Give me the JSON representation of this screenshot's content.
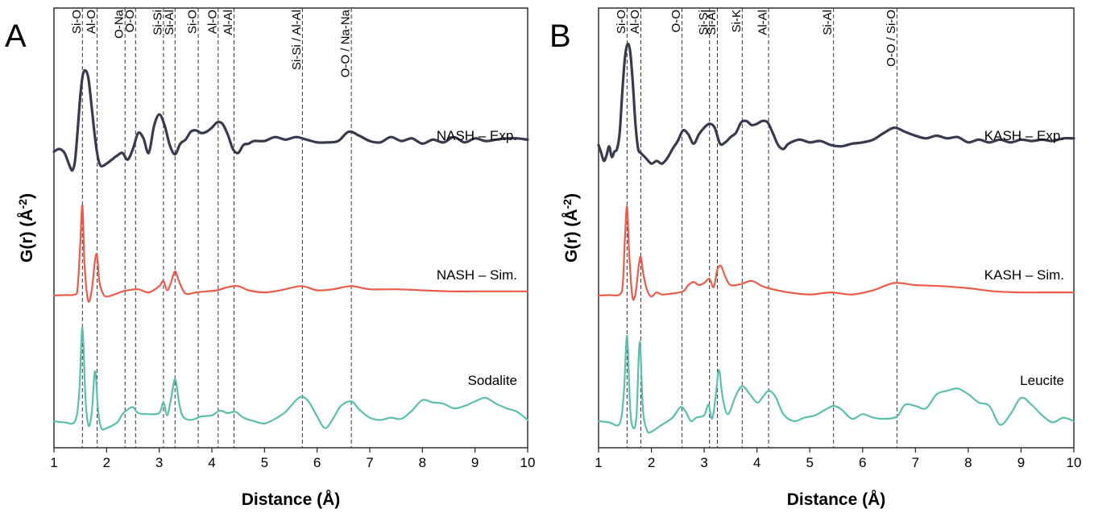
{
  "chart_data": [
    {
      "type": "line",
      "panel": "A",
      "xlabel": "Distance (Å)",
      "ylabel": "G(r) (Å",
      "ylabel_sup": "-2",
      "ylabel_close": ")",
      "xlim": [
        1,
        10
      ],
      "xticks": [
        1,
        2,
        3,
        4,
        5,
        6,
        7,
        8,
        9,
        10
      ],
      "reference_lines": [
        {
          "x": 1.54,
          "label": "Si-O"
        },
        {
          "x": 1.82,
          "label": "Al-O"
        },
        {
          "x": 2.35,
          "label": "O-Na"
        },
        {
          "x": 2.55,
          "label": "O-O"
        },
        {
          "x": 3.08,
          "label": "Si-Si"
        },
        {
          "x": 3.3,
          "label": "Si-Al"
        },
        {
          "x": 3.74,
          "label": "Si-O"
        },
        {
          "x": 4.12,
          "label": "Al-O"
        },
        {
          "x": 4.42,
          "label": "Al-Al"
        },
        {
          "x": 5.72,
          "label": "Si-Si / Al-Al"
        },
        {
          "x": 6.65,
          "label": "O-O / Na-Na"
        }
      ],
      "series": [
        {
          "name": "NASH – Exp.",
          "color": "#363b4e",
          "x": [
            1.0,
            1.1,
            1.2,
            1.3,
            1.35,
            1.4,
            1.45,
            1.5,
            1.55,
            1.6,
            1.65,
            1.7,
            1.75,
            1.8,
            1.85,
            1.9,
            2.0,
            2.1,
            2.2,
            2.3,
            2.4,
            2.5,
            2.6,
            2.7,
            2.8,
            2.9,
            3.0,
            3.1,
            3.2,
            3.3,
            3.4,
            3.5,
            3.6,
            3.7,
            3.8,
            3.9,
            4.0,
            4.1,
            4.2,
            4.3,
            4.4,
            4.5,
            4.6,
            4.7,
            4.8,
            5.0,
            5.2,
            5.4,
            5.6,
            5.8,
            6.0,
            6.2,
            6.4,
            6.6,
            6.8,
            7.0,
            7.2,
            7.4,
            7.6,
            7.8,
            8.0,
            8.2,
            8.4,
            8.6,
            8.8,
            9.0,
            9.2,
            9.4,
            9.6,
            9.8,
            10.0
          ],
          "y": [
            -0.2,
            0.0,
            -0.3,
            -1.3,
            -1.6,
            -0.9,
            1.4,
            4.0,
            5.6,
            5.9,
            5.4,
            3.8,
            1.9,
            0.2,
            -0.9,
            -1.3,
            -1.1,
            -0.8,
            -0.5,
            -0.3,
            -0.8,
            0.0,
            1.2,
            0.8,
            -0.3,
            1.7,
            2.6,
            1.8,
            0.3,
            -0.4,
            0.4,
            0.7,
            1.3,
            1.4,
            1.2,
            1.3,
            1.6,
            2.0,
            1.9,
            1.1,
            0.0,
            -0.3,
            0.3,
            0.4,
            0.6,
            0.6,
            0.9,
            0.7,
            0.9,
            0.7,
            0.5,
            0.5,
            0.6,
            1.3,
            1.0,
            0.6,
            0.5,
            0.9,
            0.6,
            0.8,
            0.4,
            0.7,
            0.5,
            0.9,
            0.5,
            0.8,
            0.6,
            0.7,
            0.8,
            0.8,
            0.7
          ]
        },
        {
          "name": "NASH – Sim.",
          "color": "#ea5b4a",
          "x": [
            1.0,
            1.2,
            1.4,
            1.45,
            1.5,
            1.54,
            1.58,
            1.65,
            1.72,
            1.78,
            1.82,
            1.86,
            1.92,
            2.0,
            2.2,
            2.3,
            2.4,
            2.6,
            2.8,
            3.0,
            3.08,
            3.15,
            3.22,
            3.3,
            3.38,
            3.5,
            3.7,
            3.9,
            4.1,
            4.3,
            4.5,
            4.7,
            5.0,
            5.3,
            5.7,
            6.0,
            6.3,
            6.65,
            7.0,
            7.5,
            8.0,
            8.5,
            9.0,
            9.5,
            10.0
          ],
          "y": [
            0.0,
            0.05,
            0.1,
            0.8,
            5.0,
            8.6,
            3.0,
            -0.5,
            0.6,
            3.4,
            3.8,
            1.4,
            0.3,
            -0.1,
            0.2,
            0.4,
            0.5,
            0.6,
            0.3,
            0.9,
            1.4,
            0.5,
            1.2,
            2.3,
            1.3,
            0.2,
            0.3,
            0.4,
            0.5,
            0.8,
            0.9,
            0.5,
            0.3,
            0.5,
            0.9,
            0.5,
            0.6,
            0.9,
            0.6,
            0.6,
            0.5,
            0.4,
            0.4,
            0.4,
            0.4
          ]
        },
        {
          "name": "Sodalite",
          "color": "#5cbfac",
          "x": [
            1.0,
            1.2,
            1.4,
            1.48,
            1.54,
            1.6,
            1.66,
            1.72,
            1.78,
            1.84,
            1.9,
            2.0,
            2.2,
            2.3,
            2.4,
            2.5,
            2.6,
            2.8,
            3.0,
            3.08,
            3.15,
            3.22,
            3.3,
            3.38,
            3.45,
            3.6,
            3.8,
            4.0,
            4.15,
            4.3,
            4.45,
            4.6,
            4.8,
            5.0,
            5.2,
            5.4,
            5.6,
            5.72,
            5.85,
            6.0,
            6.15,
            6.3,
            6.45,
            6.65,
            6.8,
            7.0,
            7.2,
            7.4,
            7.6,
            7.8,
            8.0,
            8.2,
            8.4,
            8.6,
            8.8,
            9.0,
            9.2,
            9.4,
            9.6,
            9.8,
            10.0
          ],
          "y": [
            0.0,
            -0.1,
            0.0,
            2.5,
            8.0,
            1.8,
            -0.4,
            0.8,
            4.3,
            0.8,
            -0.6,
            -0.6,
            -0.1,
            0.6,
            1.0,
            1.2,
            0.7,
            0.6,
            0.7,
            1.6,
            0.5,
            1.8,
            3.6,
            1.5,
            0.4,
            0.1,
            0.4,
            0.5,
            0.9,
            0.7,
            0.8,
            0.3,
            0.0,
            -0.2,
            0.2,
            0.8,
            1.8,
            2.1,
            1.6,
            0.4,
            -0.6,
            0.2,
            1.3,
            1.7,
            1.0,
            0.3,
            0.1,
            0.3,
            0.2,
            0.9,
            1.8,
            1.6,
            1.5,
            1.1,
            1.3,
            1.7,
            2.0,
            1.5,
            1.1,
            0.8,
            0.1
          ]
        }
      ],
      "series_labels": [
        "NASH – Exp.",
        "NASH – Sim.",
        "Sodalite"
      ]
    },
    {
      "type": "line",
      "panel": "B",
      "xlabel": "Distance (Å)",
      "ylabel": "G(r) (Å",
      "ylabel_sup": "-2",
      "ylabel_close": ")",
      "xlim": [
        1,
        10
      ],
      "xticks": [
        1,
        2,
        3,
        4,
        5,
        6,
        7,
        8,
        9,
        10
      ],
      "reference_lines": [
        {
          "x": 1.54,
          "label": "Si-O"
        },
        {
          "x": 1.8,
          "label": "Al-O"
        },
        {
          "x": 2.58,
          "label": "O-O"
        },
        {
          "x": 3.1,
          "label": "Si-Si"
        },
        {
          "x": 3.25,
          "label": "Si-Al"
        },
        {
          "x": 3.72,
          "label": "Si-K"
        },
        {
          "x": 4.22,
          "label": "Al-Al"
        },
        {
          "x": 5.45,
          "label": "Si-Al"
        },
        {
          "x": 6.65,
          "label": "O-O / Si-O"
        }
      ],
      "series": [
        {
          "name": "KASH – Exp.",
          "color": "#363b4e",
          "x": [
            1.0,
            1.05,
            1.1,
            1.15,
            1.2,
            1.25,
            1.3,
            1.35,
            1.4,
            1.45,
            1.5,
            1.55,
            1.6,
            1.65,
            1.7,
            1.75,
            1.8,
            1.85,
            1.9,
            2.0,
            2.1,
            2.2,
            2.3,
            2.4,
            2.5,
            2.6,
            2.7,
            2.8,
            2.9,
            3.0,
            3.1,
            3.2,
            3.3,
            3.4,
            3.5,
            3.6,
            3.7,
            3.8,
            3.9,
            4.0,
            4.1,
            4.2,
            4.3,
            4.4,
            4.5,
            4.6,
            4.8,
            5.0,
            5.2,
            5.4,
            5.6,
            5.8,
            6.0,
            6.2,
            6.4,
            6.6,
            6.8,
            7.0,
            7.2,
            7.4,
            7.6,
            7.8,
            8.0,
            8.2,
            8.4,
            8.6,
            8.8,
            9.0,
            9.2,
            9.4,
            9.6,
            9.8,
            10.0
          ],
          "y": [
            0.3,
            -0.3,
            -0.9,
            -0.5,
            0.2,
            -0.6,
            -0.2,
            0.0,
            1.2,
            4.3,
            6.9,
            7.9,
            7.3,
            4.9,
            1.8,
            0.0,
            -0.3,
            -0.5,
            -0.7,
            -1.1,
            -0.9,
            -1.1,
            -0.7,
            0.0,
            0.6,
            1.4,
            1.1,
            0.4,
            1.1,
            1.6,
            1.9,
            1.6,
            0.4,
            0.5,
            0.9,
            1.2,
            2.0,
            2.1,
            1.8,
            1.9,
            2.1,
            2.0,
            1.2,
            0.3,
            0.0,
            0.4,
            0.7,
            0.5,
            0.6,
            0.3,
            0.2,
            0.4,
            0.5,
            0.7,
            1.2,
            1.6,
            1.3,
            1.0,
            0.8,
            1.0,
            0.8,
            0.9,
            0.5,
            0.7,
            0.5,
            0.7,
            0.5,
            0.7,
            0.6,
            0.7,
            0.6,
            0.8,
            0.8
          ]
        },
        {
          "name": "KASH – Sim.",
          "color": "#ea5b4a",
          "x": [
            1.0,
            1.2,
            1.4,
            1.46,
            1.5,
            1.54,
            1.58,
            1.64,
            1.7,
            1.76,
            1.8,
            1.85,
            1.92,
            2.0,
            2.1,
            2.2,
            2.4,
            2.6,
            2.7,
            2.8,
            2.9,
            3.0,
            3.1,
            3.18,
            3.25,
            3.32,
            3.4,
            3.5,
            3.7,
            3.9,
            4.1,
            4.3,
            4.6,
            5.0,
            5.4,
            5.8,
            6.2,
            6.6,
            7.0,
            7.5,
            8.0,
            8.5,
            9.0,
            9.5,
            10.0
          ],
          "y": [
            0.0,
            0.05,
            0.1,
            1.2,
            5.6,
            8.5,
            4.0,
            -0.1,
            0.2,
            2.8,
            3.7,
            2.0,
            0.5,
            -0.1,
            0.3,
            0.1,
            0.2,
            0.4,
            1.0,
            1.3,
            1.0,
            1.2,
            1.6,
            0.8,
            2.5,
            2.8,
            1.8,
            1.0,
            1.1,
            1.4,
            0.9,
            0.6,
            0.3,
            0.1,
            0.3,
            0.1,
            0.5,
            1.2,
            1.0,
            0.9,
            0.7,
            0.4,
            0.3,
            0.3,
            0.3
          ]
        },
        {
          "name": "Leucite",
          "color": "#5cbfac",
          "x": [
            1.0,
            1.2,
            1.4,
            1.48,
            1.54,
            1.6,
            1.66,
            1.72,
            1.78,
            1.84,
            1.92,
            2.0,
            2.2,
            2.4,
            2.55,
            2.65,
            2.75,
            2.85,
            3.0,
            3.08,
            3.15,
            3.22,
            3.28,
            3.35,
            3.45,
            3.6,
            3.72,
            3.85,
            4.0,
            4.1,
            4.22,
            4.35,
            4.5,
            4.7,
            4.9,
            5.1,
            5.3,
            5.45,
            5.6,
            5.8,
            6.0,
            6.2,
            6.4,
            6.65,
            6.8,
            7.0,
            7.2,
            7.4,
            7.6,
            7.8,
            8.0,
            8.2,
            8.4,
            8.6,
            8.8,
            9.0,
            9.2,
            9.4,
            9.6,
            9.8,
            10.0
          ],
          "y": [
            0.0,
            -0.1,
            -0.2,
            2.5,
            7.3,
            1.0,
            -0.6,
            0.6,
            6.8,
            1.0,
            -0.8,
            -0.9,
            -0.3,
            0.3,
            1.2,
            0.8,
            0.0,
            0.3,
            0.5,
            1.4,
            0.2,
            2.2,
            4.4,
            2.0,
            0.6,
            2.2,
            3.0,
            2.4,
            1.6,
            2.0,
            2.6,
            2.1,
            0.6,
            0.0,
            0.3,
            0.5,
            1.0,
            1.3,
            1.0,
            0.2,
            0.6,
            0.3,
            0.2,
            0.4,
            1.4,
            1.3,
            1.1,
            2.3,
            2.6,
            2.8,
            2.3,
            1.6,
            1.3,
            -0.3,
            0.6,
            2.0,
            1.4,
            0.5,
            -0.1,
            0.3,
            0.0
          ]
        }
      ],
      "series_labels": [
        "KASH – Exp.",
        "KASH – Sim.",
        "Leucite"
      ]
    }
  ]
}
